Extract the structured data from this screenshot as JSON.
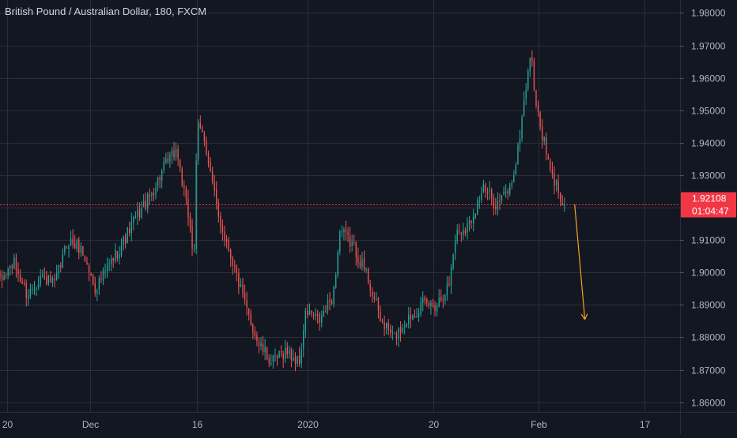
{
  "chart_data": {
    "type": "candlestick",
    "title": "British Pound / Australian Dollar, 180, FXCM",
    "y_axis": {
      "position": "right",
      "ticks": [
        "1.98000",
        "1.97000",
        "1.96000",
        "1.95000",
        "1.94000",
        "1.93000",
        "1.92000",
        "1.91000",
        "1.90000",
        "1.89000",
        "1.88000",
        "1.87000",
        "1.86000"
      ],
      "ylim": [
        1.857,
        1.984
      ]
    },
    "x_axis": {
      "ticks": [
        "20",
        "Dec",
        "16",
        "2020",
        "20",
        "Feb",
        "17"
      ],
      "xlim": [
        0,
        100
      ]
    },
    "price_line": {
      "value": 1.921,
      "label": "1.92108",
      "countdown": "01:04:47",
      "color": "#f23645"
    },
    "up_color": "#26a69a",
    "down_color": "#ef5350",
    "projection_arrow": {
      "from": [
        84.5,
        1.921
      ],
      "to": [
        86.0,
        1.8855
      ],
      "color": "#f7a21b"
    },
    "path": [
      [
        0,
        1.897
      ],
      [
        2,
        1.903
      ],
      [
        4,
        1.893
      ],
      [
        6,
        1.899
      ],
      [
        8,
        1.896
      ],
      [
        10,
        1.91
      ],
      [
        12,
        1.907
      ],
      [
        14,
        1.895
      ],
      [
        16,
        1.902
      ],
      [
        18,
        1.909
      ],
      [
        20,
        1.917
      ],
      [
        22,
        1.923
      ],
      [
        24,
        1.932
      ],
      [
        26,
        1.938
      ],
      [
        27,
        1.925
      ],
      [
        28,
        1.914
      ],
      [
        28.5,
        1.903
      ],
      [
        29,
        1.945
      ],
      [
        30,
        1.942
      ],
      [
        31,
        1.93
      ],
      [
        32,
        1.918
      ],
      [
        34,
        1.905
      ],
      [
        36,
        1.89
      ],
      [
        38,
        1.878
      ],
      [
        40,
        1.872
      ],
      [
        42,
        1.876
      ],
      [
        44,
        1.872
      ],
      [
        45,
        1.888
      ],
      [
        47,
        1.885
      ],
      [
        49,
        1.893
      ],
      [
        50,
        1.913
      ],
      [
        52,
        1.908
      ],
      [
        54,
        1.899
      ],
      [
        56,
        1.885
      ],
      [
        58,
        1.88
      ],
      [
        60,
        1.886
      ],
      [
        62,
        1.89
      ],
      [
        64,
        1.89
      ],
      [
        66,
        1.896
      ],
      [
        67,
        1.912
      ],
      [
        69,
        1.915
      ],
      [
        71,
        1.926
      ],
      [
        73,
        1.921
      ],
      [
        75,
        1.926
      ],
      [
        76,
        1.935
      ],
      [
        77,
        1.952
      ],
      [
        78,
        1.968
      ],
      [
        79,
        1.949
      ],
      [
        80,
        1.94
      ],
      [
        81,
        1.93
      ],
      [
        82,
        1.926
      ],
      [
        83,
        1.921
      ]
    ]
  }
}
